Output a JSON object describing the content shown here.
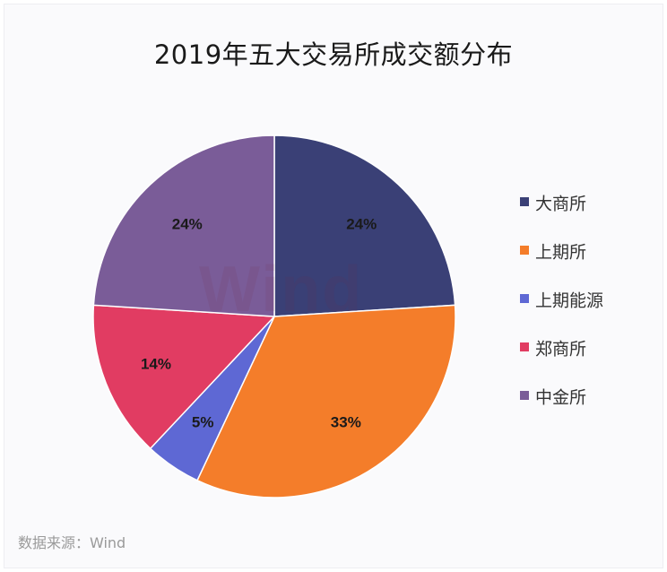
{
  "chart_data": {
    "type": "pie",
    "title": "2019年五大交易所成交额分布",
    "categories": [
      "大商所",
      "上期所",
      "上期能源",
      "郑商所",
      "中金所"
    ],
    "values": [
      24,
      33,
      5,
      14,
      24
    ],
    "labels": [
      "24%",
      "33%",
      "5%",
      "14%",
      "24%"
    ],
    "colors": [
      "#3a4076",
      "#f47d2a",
      "#5e68d4",
      "#e13c62",
      "#7a5c98"
    ],
    "legend_position": "right",
    "start_angle": "top, clockwise",
    "watermark": "Wind"
  },
  "source": "数据来源：Wind"
}
